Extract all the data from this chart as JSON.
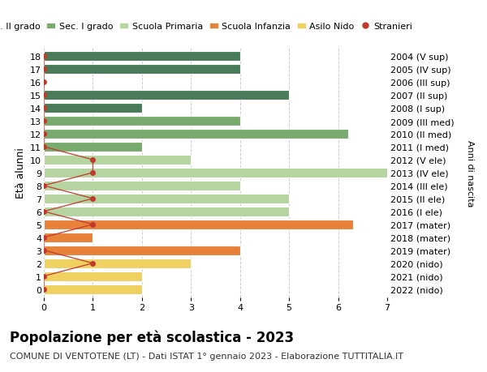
{
  "ages": [
    18,
    17,
    16,
    15,
    14,
    13,
    12,
    11,
    10,
    9,
    8,
    7,
    6,
    5,
    4,
    3,
    2,
    1,
    0
  ],
  "right_labels": [
    "2004 (V sup)",
    "2005 (IV sup)",
    "2006 (III sup)",
    "2007 (II sup)",
    "2008 (I sup)",
    "2009 (III med)",
    "2010 (II med)",
    "2011 (I med)",
    "2012 (V ele)",
    "2013 (IV ele)",
    "2014 (III ele)",
    "2015 (II ele)",
    "2016 (I ele)",
    "2017 (mater)",
    "2018 (mater)",
    "2019 (mater)",
    "2020 (nido)",
    "2021 (nido)",
    "2022 (nido)"
  ],
  "bar_values": [
    4,
    4,
    0,
    5,
    2,
    4,
    6.2,
    2,
    3,
    7.3,
    4,
    5,
    5,
    6.3,
    1,
    4,
    3,
    2,
    2
  ],
  "bar_colors": [
    "#4a7c59",
    "#4a7c59",
    "#4a7c59",
    "#4a7c59",
    "#4a7c59",
    "#7aab6e",
    "#7aab6e",
    "#7aab6e",
    "#b5d4a0",
    "#b5d4a0",
    "#b5d4a0",
    "#b5d4a0",
    "#b5d4a0",
    "#e8813a",
    "#e8813a",
    "#e8813a",
    "#f0d060",
    "#f0d060",
    "#f0d060"
  ],
  "stranieri_values": [
    0,
    0,
    0,
    0,
    0,
    0,
    0,
    0,
    1,
    1,
    0,
    1,
    0,
    1,
    0,
    0,
    1,
    0,
    0
  ],
  "stranieri_color": "#c0392b",
  "title": "Popolazione per età scolastica - 2023",
  "subtitle": "COMUNE DI VENTOTENE (LT) - Dati ISTAT 1° gennaio 2023 - Elaborazione TUTTITALIA.IT",
  "ylabel": "Età alunni",
  "right_ylabel": "Anni di nascita",
  "legend_labels": [
    "Sec. II grado",
    "Sec. I grado",
    "Scuola Primaria",
    "Scuola Infanzia",
    "Asilo Nido",
    "Stranieri"
  ],
  "legend_colors": [
    "#4a7c59",
    "#7aab6e",
    "#b5d4a0",
    "#e8813a",
    "#f0d060",
    "#c0392b"
  ],
  "bg_color": "#ffffff",
  "grid_color": "#cccccc",
  "xlim": [
    0,
    7
  ],
  "bar_height": 0.75,
  "title_fontsize": 12,
  "subtitle_fontsize": 8,
  "tick_fontsize": 8,
  "legend_fontsize": 8
}
